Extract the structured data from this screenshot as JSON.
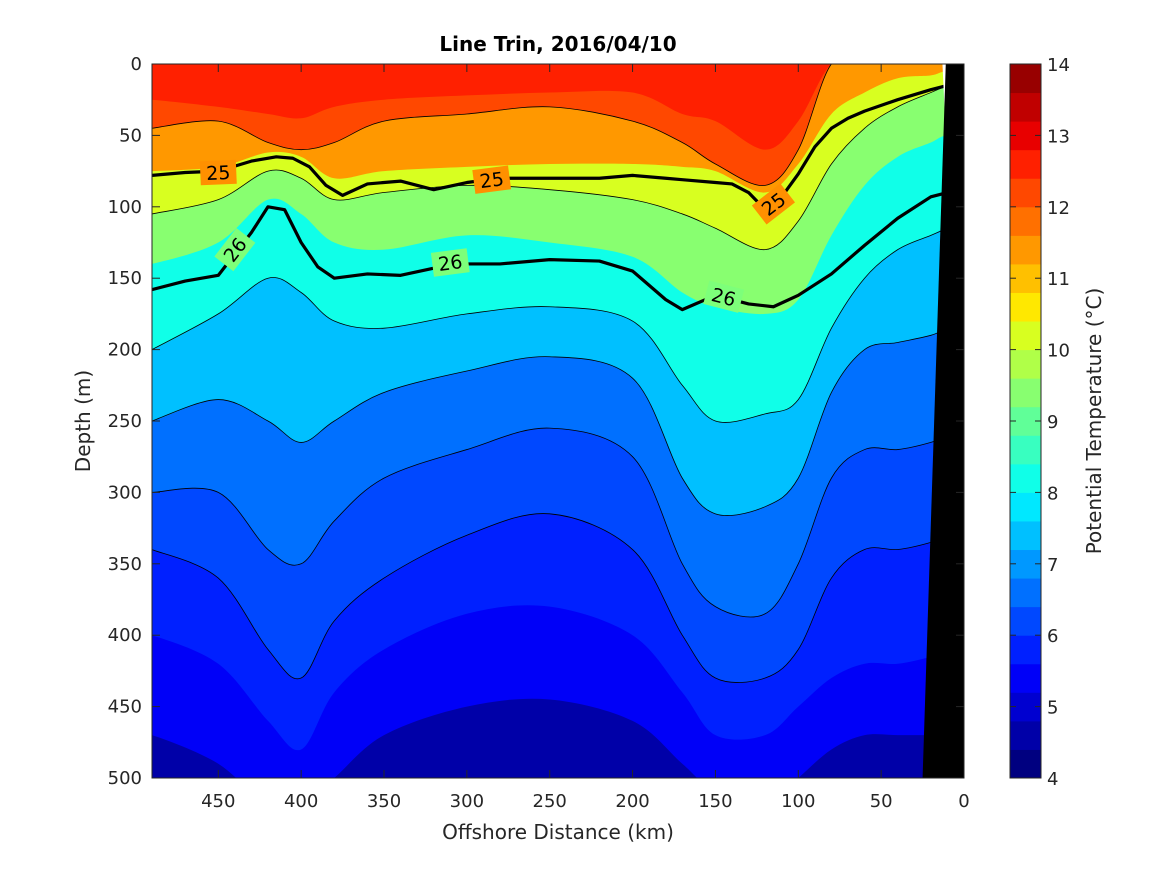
{
  "chart_data": {
    "type": "heatmap",
    "subtype": "filled contour section",
    "title": "Line Trin, 2016/04/10",
    "xlabel": "Offshore Distance (km)",
    "ylabel": "Depth (m)",
    "xlim": [
      490,
      0
    ],
    "x_reversed": true,
    "ylim": [
      0,
      500
    ],
    "y_reversed": true,
    "x_ticks": [
      450,
      400,
      350,
      300,
      250,
      200,
      150,
      100,
      50,
      0
    ],
    "y_ticks": [
      0,
      50,
      100,
      150,
      200,
      250,
      300,
      350,
      400,
      450,
      500
    ],
    "colorbar": {
      "label": "Potential Temperature (°C)",
      "range": [
        4,
        14
      ],
      "ticks": [
        4,
        5,
        6,
        7,
        8,
        9,
        10,
        11,
        12,
        13,
        14
      ],
      "levels": [
        4,
        4.5,
        5,
        5.5,
        6,
        6.5,
        7,
        7.5,
        8,
        8.5,
        9,
        9.5,
        10,
        10.5,
        11,
        11.5,
        12,
        12.5,
        13,
        13.5,
        14
      ],
      "colors": [
        "#000080",
        "#0000a8",
        "#0000d0",
        "#0000f8",
        "#0020ff",
        "#0048ff",
        "#0070ff",
        "#0098ff",
        "#00c0ff",
        "#00e8ff",
        "#10ffe8",
        "#38ffc0",
        "#60ff98",
        "#88ff70",
        "#b0ff48",
        "#d8ff20",
        "#ffe800",
        "#ffc000",
        "#ff9800",
        "#ff7000",
        "#ff4800",
        "#ff2000",
        "#e80000",
        "#c00000",
        "#980000"
      ]
    },
    "isotherm_depths_m": {
      "x": [
        490,
        450,
        420,
        400,
        380,
        350,
        300,
        250,
        200,
        170,
        150,
        120,
        100,
        80,
        60,
        40,
        20,
        10
      ],
      "12.5C": [
        25,
        30,
        35,
        38,
        30,
        25,
        22,
        20,
        20,
        35,
        40,
        60,
        40,
        0,
        0,
        0,
        0,
        0
      ],
      "12C": [
        45,
        40,
        55,
        60,
        55,
        40,
        35,
        30,
        40,
        55,
        70,
        85,
        60,
        0,
        0,
        0,
        0,
        0
      ],
      "11C": [
        75,
        72,
        62,
        65,
        80,
        75,
        72,
        70,
        70,
        72,
        75,
        90,
        70,
        35,
        20,
        10,
        8,
        5
      ],
      "10C": [
        105,
        95,
        75,
        80,
        95,
        90,
        85,
        88,
        95,
        105,
        115,
        130,
        110,
        70,
        45,
        30,
        20,
        15
      ],
      "9C": [
        140,
        125,
        95,
        105,
        125,
        130,
        120,
        125,
        135,
        160,
        170,
        175,
        165,
        120,
        85,
        65,
        55,
        50
      ],
      "8C": [
        200,
        175,
        150,
        160,
        180,
        185,
        175,
        170,
        180,
        225,
        250,
        245,
        235,
        185,
        150,
        130,
        120,
        115
      ],
      "7C": [
        250,
        235,
        250,
        265,
        250,
        230,
        215,
        205,
        220,
        290,
        315,
        310,
        290,
        230,
        200,
        195,
        190,
        185
      ],
      "6.5C": [
        300,
        300,
        340,
        350,
        320,
        290,
        270,
        255,
        275,
        350,
        380,
        385,
        350,
        290,
        270,
        270,
        265,
        260
      ],
      "6C": [
        340,
        360,
        410,
        430,
        390,
        360,
        330,
        315,
        340,
        400,
        430,
        430,
        410,
        360,
        340,
        340,
        335,
        330
      ],
      "5.5C": [
        400,
        420,
        460,
        480,
        440,
        410,
        385,
        380,
        400,
        440,
        470,
        470,
        450,
        430,
        420,
        420,
        415,
        410
      ],
      "5C": [
        470,
        490,
        520,
        520,
        500,
        470,
        450,
        445,
        460,
        490,
        510,
        520,
        500,
        480,
        470,
        470,
        470,
        470
      ]
    },
    "density_contours": [
      {
        "label": "25",
        "x": [
          490,
          470,
          450,
          430,
          415,
          405,
          395,
          385,
          375,
          360,
          340,
          320,
          300,
          280,
          250,
          220,
          200,
          180,
          170,
          150,
          140,
          130,
          120,
          110,
          100,
          90,
          80,
          70,
          60,
          40,
          20,
          10
        ],
        "depth": [
          78,
          76,
          75,
          68,
          65,
          66,
          72,
          85,
          92,
          84,
          82,
          88,
          83,
          80,
          80,
          80,
          78,
          80,
          81,
          83,
          84,
          90,
          102,
          93,
          77,
          58,
          45,
          38,
          33,
          25,
          18,
          15
        ],
        "label_positions": [
          [
            450,
            76
          ],
          [
            285,
            81
          ],
          [
            115,
            98
          ]
        ]
      },
      {
        "label": "26",
        "x": [
          490,
          470,
          450,
          430,
          420,
          410,
          400,
          390,
          380,
          360,
          340,
          320,
          300,
          280,
          250,
          220,
          200,
          180,
          170,
          150,
          130,
          115,
          100,
          80,
          60,
          40,
          20,
          10
        ],
        "depth": [
          158,
          152,
          148,
          118,
          100,
          102,
          125,
          142,
          150,
          147,
          148,
          143,
          140,
          140,
          137,
          138,
          145,
          165,
          172,
          162,
          168,
          170,
          162,
          147,
          127,
          108,
          93,
          90
        ],
        "label_positions": [
          [
            440,
            130
          ],
          [
            310,
            139
          ],
          [
            145,
            163
          ]
        ]
      }
    ],
    "bathymetry_mask": {
      "description": "black wedge (seafloor/land) on the right edge",
      "x": [
        11,
        0,
        0,
        25
      ],
      "depth": [
        0,
        0,
        500,
        500
      ]
    }
  }
}
